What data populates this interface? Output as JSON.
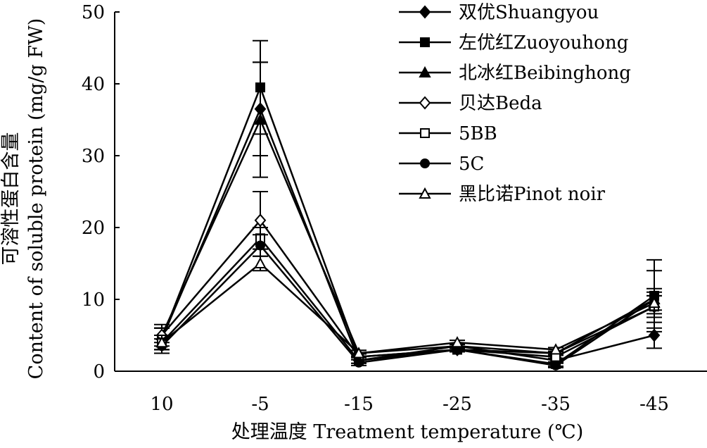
{
  "chart_data": {
    "type": "line",
    "xlabel": "处理温度 Treatment temperature (℃)",
    "ylabel_cn": "可溶性蛋白含量",
    "ylabel_en": "Content of soluble protein (mg/g FW)",
    "categories": [
      "10",
      "-5",
      "-15",
      "-25",
      "-35",
      "-45"
    ],
    "ylim": [
      0,
      50
    ],
    "yticks": [
      0,
      10,
      20,
      30,
      40,
      50
    ],
    "grid": false,
    "legend_position": "top-right",
    "series": [
      {
        "name": "双优Shuangyou",
        "marker": "filled-diamond",
        "values": [
          4.5,
          36.5,
          1.5,
          3.5,
          1.5,
          5.0
        ],
        "errors": [
          1.5,
          6.5,
          0.4,
          0.3,
          0.3,
          1.8
        ]
      },
      {
        "name": "左优红Zuoyouhong",
        "marker": "filled-square",
        "values": [
          4.5,
          39.5,
          2.0,
          3.0,
          1.0,
          10.5
        ],
        "errors": [
          1.5,
          6.5,
          0.4,
          0.3,
          0.3,
          5.0
        ]
      },
      {
        "name": "北冰红Beibinghong",
        "marker": "filled-triangle",
        "values": [
          5.0,
          35.0,
          2.5,
          3.5,
          2.5,
          10.0
        ],
        "errors": [
          1.5,
          8.0,
          0.4,
          0.3,
          0.3,
          4.0
        ]
      },
      {
        "name": "贝达Beda",
        "marker": "open-diamond",
        "values": [
          5.0,
          21.0,
          2.0,
          3.0,
          2.5,
          9.0
        ],
        "errors": [
          1.0,
          4.0,
          0.4,
          0.3,
          0.3,
          1.5
        ]
      },
      {
        "name": "5BB",
        "marker": "open-square",
        "values": [
          4.0,
          18.5,
          1.5,
          3.0,
          2.0,
          9.0
        ],
        "errors": [
          1.0,
          1.5,
          0.4,
          0.3,
          0.3,
          1.5
        ]
      },
      {
        "name": "5C",
        "marker": "filled-circle",
        "values": [
          3.5,
          17.5,
          1.2,
          3.0,
          0.8,
          10.0
        ],
        "errors": [
          1.0,
          1.5,
          0.4,
          0.3,
          0.3,
          1.5
        ]
      },
      {
        "name": "黑比诺Pinot noir",
        "marker": "open-triangle",
        "values": [
          4.0,
          15.0,
          2.5,
          4.0,
          3.0,
          9.5
        ],
        "errors": [
          1.0,
          1.0,
          0.4,
          0.3,
          0.3,
          1.5
        ]
      }
    ]
  }
}
